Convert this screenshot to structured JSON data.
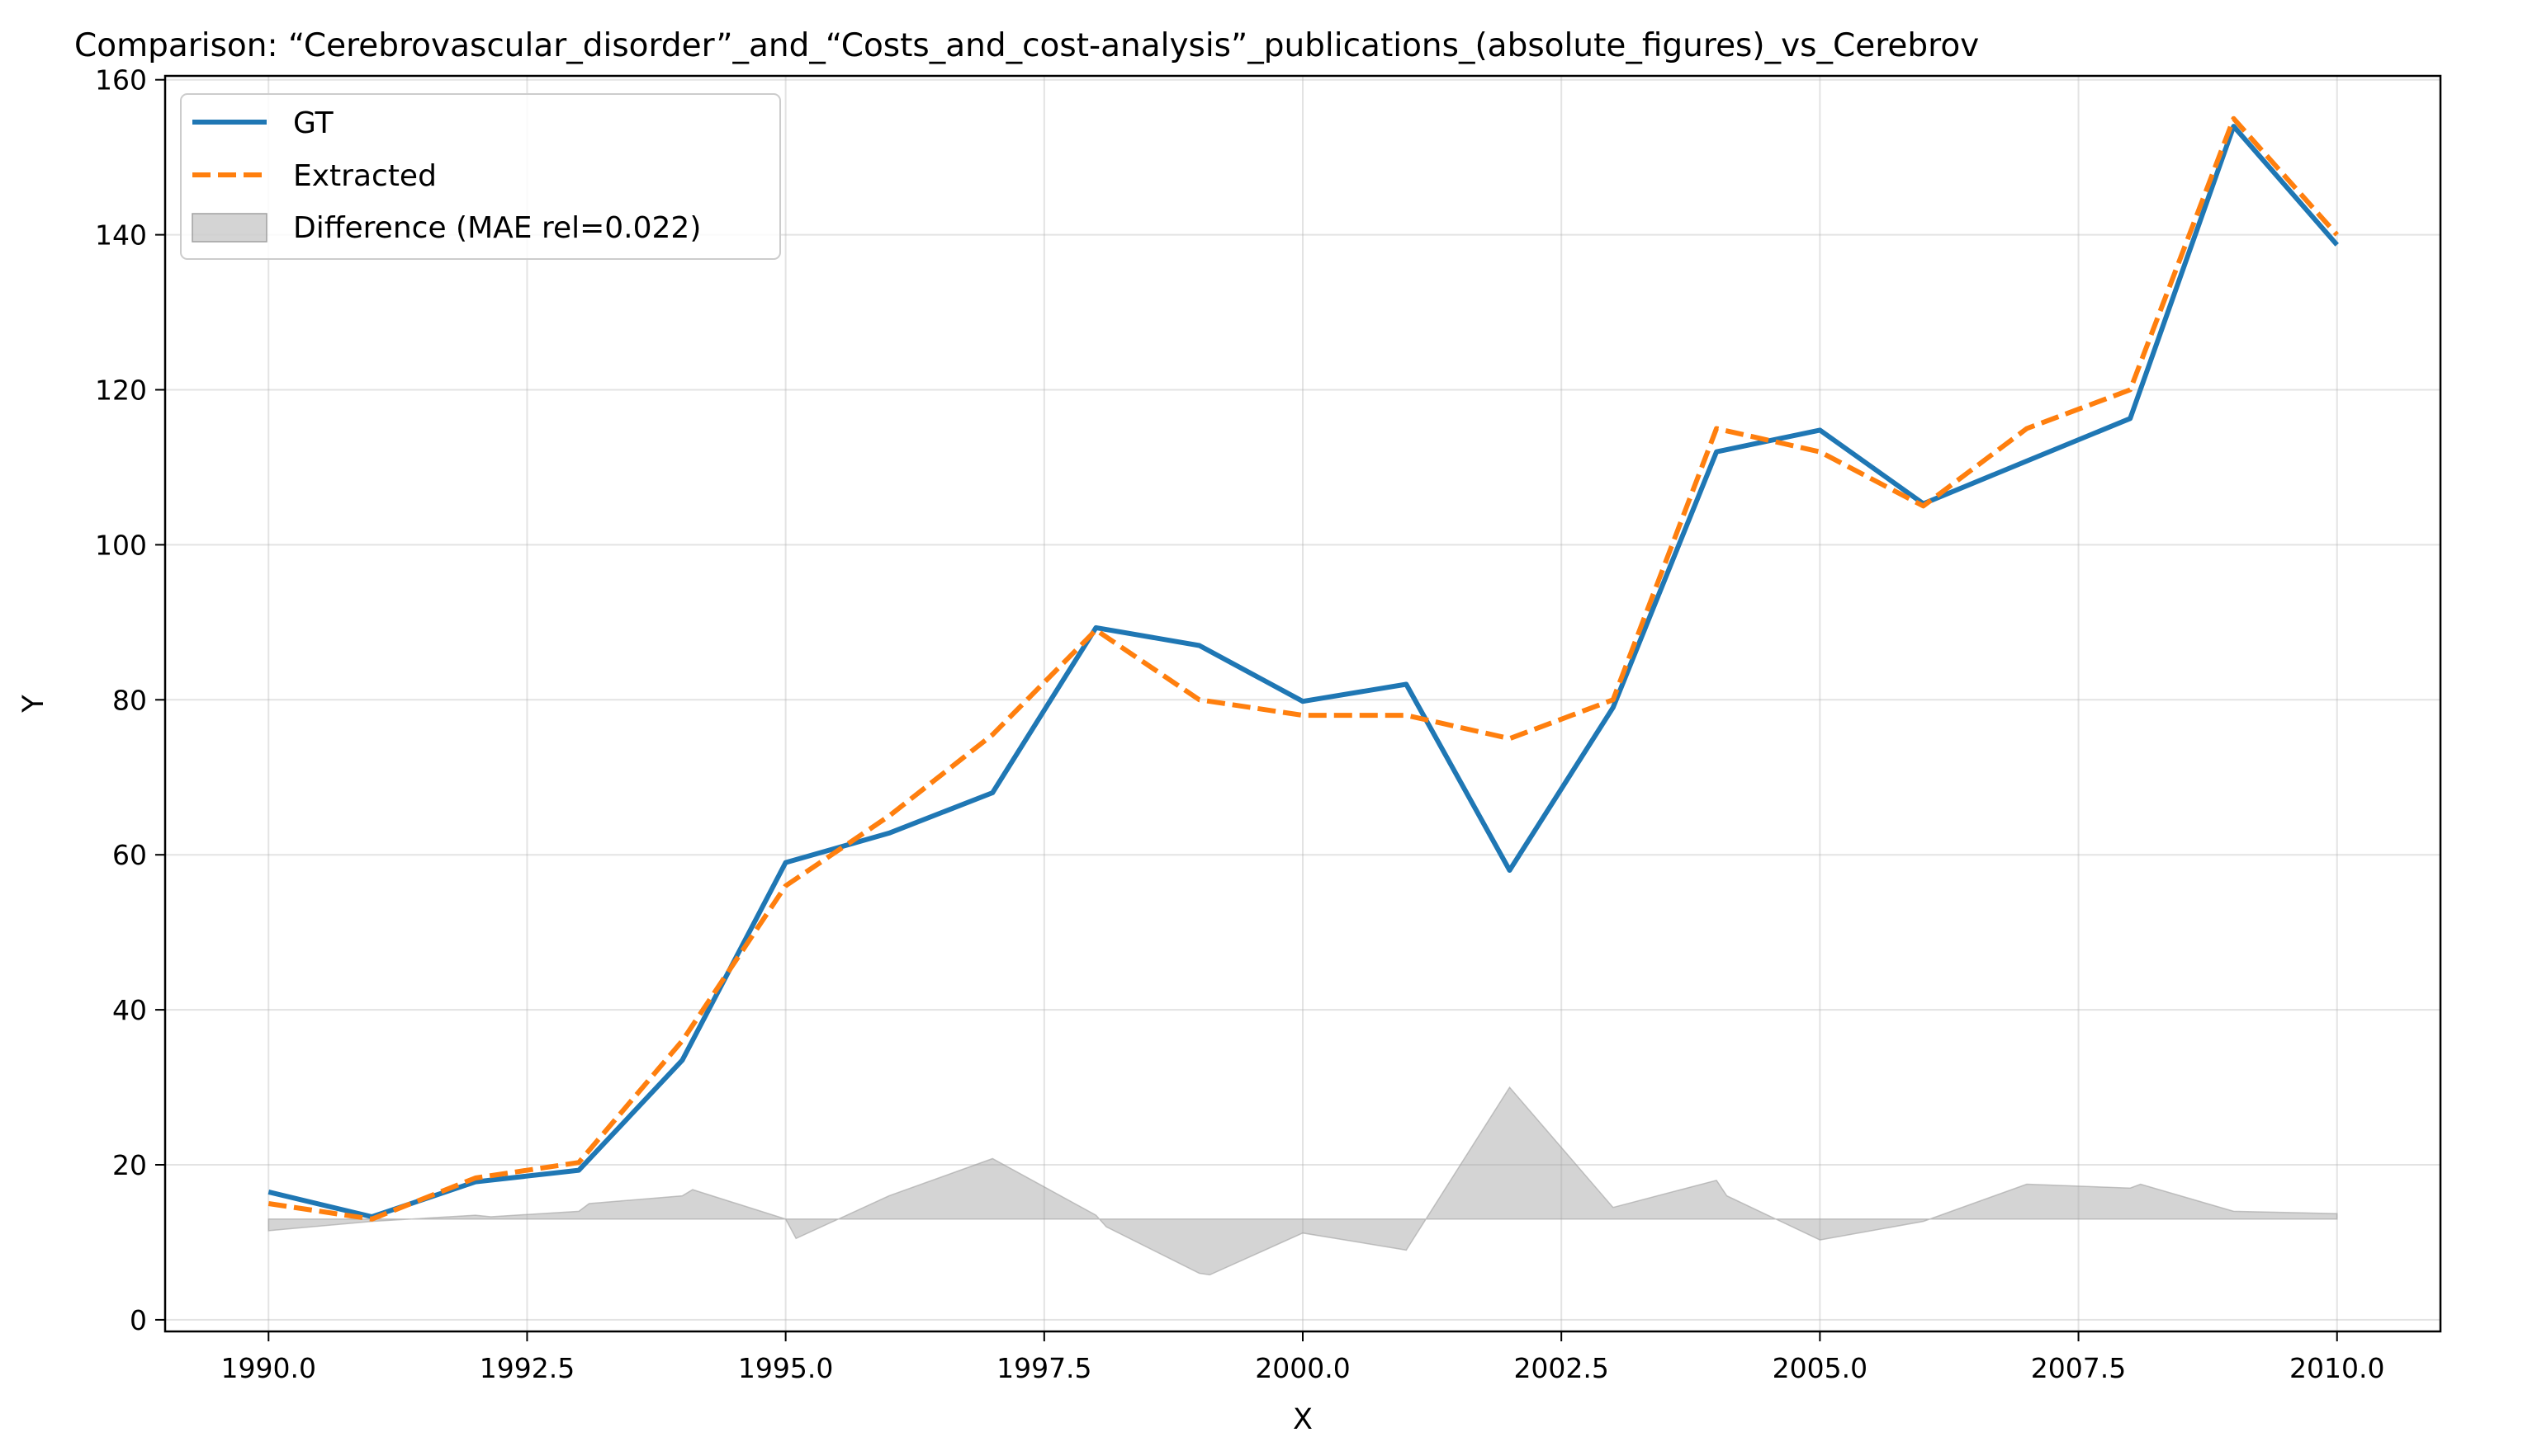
{
  "chart_data": {
    "type": "line",
    "title": "Comparison: “Cerebrovascular_disorder”_and_“Costs_and_cost-analysis”_publications_(absolute_figures)_vs_Cerebrov",
    "xlabel": "X",
    "ylabel": "Y",
    "xlim": [
      1989.0,
      2011.0
    ],
    "ylim": [
      -1.5,
      160.5
    ],
    "grid": true,
    "legend_position": "upper-left",
    "x_ticks": [
      1990.0,
      1992.5,
      1995.0,
      1997.5,
      2000.0,
      2002.5,
      2005.0,
      2007.5,
      2010.0
    ],
    "x_tick_labels": [
      "1990.0",
      "1992.5",
      "1995.0",
      "1997.5",
      "2000.0",
      "2002.5",
      "2005.0",
      "2007.5",
      "2010.0"
    ],
    "y_ticks": [
      0,
      20,
      40,
      60,
      80,
      100,
      120,
      140,
      160
    ],
    "y_tick_labels": [
      "0",
      "20",
      "40",
      "60",
      "80",
      "100",
      "120",
      "140",
      "160"
    ],
    "x": [
      1990,
      1991,
      1992,
      1993,
      1994,
      1995,
      1996,
      1997,
      1998,
      1999,
      2000,
      2001,
      2002,
      2003,
      2004,
      2005,
      2006,
      2007,
      2008,
      2009,
      2010
    ],
    "series": [
      {
        "name": "GT",
        "color": "#1f77b4",
        "style": "solid",
        "values": [
          16.5,
          13.3,
          17.8,
          19.3,
          33.5,
          59.0,
          62.8,
          68.0,
          89.3,
          87.0,
          79.8,
          82.0,
          58.0,
          79.0,
          112.0,
          114.8,
          105.3,
          110.8,
          116.3,
          154.0,
          138.7
        ]
      },
      {
        "name": "Extracted",
        "color": "#ff7f0e",
        "style": "dashed",
        "values": [
          15.0,
          13.0,
          18.3,
          20.3,
          36.0,
          56.0,
          65.0,
          75.5,
          89.0,
          80.0,
          78.0,
          78.0,
          75.0,
          80.0,
          115.0,
          112.0,
          105.0,
          115.0,
          120.0,
          155.0,
          140.0
        ]
      }
    ],
    "difference": {
      "name": "Difference (MAE rel=0.022)",
      "color": "#a0a0a0",
      "baseline": 13.0,
      "x": [
        1990,
        1991,
        1992,
        1992.15,
        1993,
        1993.1,
        1994,
        1994.1,
        1995,
        1995.1,
        1996,
        1997,
        1998,
        1998.1,
        1999,
        1999.1,
        2000,
        2001,
        2002,
        2003,
        2004,
        2004.1,
        2005,
        2006,
        2007,
        2008,
        2008.1,
        2009,
        2010
      ],
      "values": [
        11.5,
        12.7,
        13.5,
        13.3,
        14.0,
        15.0,
        16.0,
        16.8,
        13.0,
        10.5,
        16.0,
        20.8,
        13.5,
        12.0,
        6.0,
        5.8,
        11.2,
        9.0,
        30.0,
        14.5,
        18.0,
        16.0,
        10.3,
        12.7,
        17.5,
        17.0,
        17.5,
        14.0,
        13.7
      ]
    }
  }
}
